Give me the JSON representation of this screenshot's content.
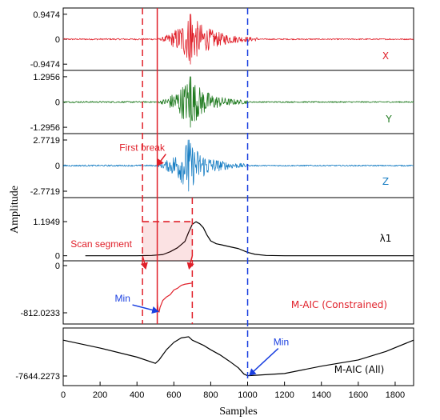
{
  "chart_data": {
    "type": "line",
    "title": "",
    "xlabel": "Samples",
    "ylabel": "Amplitude",
    "xlim": [
      0,
      1900
    ],
    "x_ticks": [
      "0",
      "200",
      "400",
      "600",
      "800",
      "1000",
      "1200",
      "1400",
      "1600",
      "1800"
    ],
    "panels": [
      {
        "id": "x",
        "series_label": "X",
        "color": "#e0202a",
        "ylim": [
          -0.9474,
          0.9474
        ],
        "y_ticks": [
          "0.9474",
          "0",
          "-0.9474"
        ],
        "signal": {
          "kind": "seismic",
          "start": 0,
          "end": 1900,
          "onset": 510,
          "peak_at": 690,
          "tail_end": 1060,
          "peak_amplitude": 0.9474
        }
      },
      {
        "id": "y",
        "series_label": "Y",
        "color": "#1f7a1f",
        "ylim": [
          -1.2956,
          1.2956
        ],
        "y_ticks": [
          "1.2956",
          "0",
          "-1.2956"
        ],
        "signal": {
          "kind": "seismic",
          "start": 0,
          "end": 1900,
          "onset": 505,
          "peak_at": 690,
          "tail_end": 1000,
          "peak_amplitude": 1.2956
        }
      },
      {
        "id": "z",
        "series_label": "Z",
        "color": "#1a7fc4",
        "ylim": [
          -2.7719,
          2.7719
        ],
        "y_ticks": [
          "2.7719",
          "0",
          "-2.7719"
        ],
        "signal": {
          "kind": "seismic",
          "start": 0,
          "end": 1900,
          "onset": 500,
          "peak_at": 680,
          "tail_end": 1000,
          "peak_amplitude": 2.7719
        }
      },
      {
        "id": "lambda",
        "series_label": "λ1",
        "color": "#000000",
        "ylim": [
          0,
          1.1949
        ],
        "y_ticks": [
          "1.1949",
          "0"
        ],
        "points": [
          [
            120,
            0
          ],
          [
            400,
            0
          ],
          [
            480,
            0.01
          ],
          [
            540,
            0.04
          ],
          [
            580,
            0.14
          ],
          [
            620,
            0.28
          ],
          [
            660,
            0.5
          ],
          [
            680,
            0.82
          ],
          [
            700,
            1.1
          ],
          [
            720,
            1.19
          ],
          [
            740,
            1.12
          ],
          [
            760,
            0.98
          ],
          [
            780,
            0.72
          ],
          [
            800,
            0.52
          ],
          [
            830,
            0.42
          ],
          [
            860,
            0.38
          ],
          [
            900,
            0.32
          ],
          [
            950,
            0.25
          ],
          [
            1000,
            0.12
          ],
          [
            1040,
            0.05
          ],
          [
            1100,
            0.01
          ],
          [
            1200,
            0
          ],
          [
            1900,
            0
          ]
        ]
      },
      {
        "id": "maic_constrained",
        "series_label": "M-AIC (Constrained)",
        "color": "#e0202a",
        "ylim": [
          -812.0233,
          0
        ],
        "y_ticks": [
          "0",
          "-812.0233"
        ],
        "points": [
          [
            510,
            -620
          ],
          [
            515,
            -780
          ],
          [
            520,
            -800
          ],
          [
            525,
            -720
          ],
          [
            540,
            -600
          ],
          [
            560,
            -540
          ],
          [
            580,
            -500
          ],
          [
            600,
            -420
          ],
          [
            620,
            -390
          ],
          [
            640,
            -340
          ],
          [
            660,
            -320
          ],
          [
            680,
            -310
          ],
          [
            700,
            -300
          ]
        ]
      },
      {
        "id": "maic_all",
        "series_label": "M-AIC (All)",
        "color": "#000000",
        "ylim": [
          -7644.2273,
          0
        ],
        "y_ticks": [
          "-7644.2273"
        ],
        "points": [
          [
            0,
            -1300
          ],
          [
            200,
            -2700
          ],
          [
            400,
            -4300
          ],
          [
            500,
            -5400
          ],
          [
            520,
            -4800
          ],
          [
            560,
            -3000
          ],
          [
            600,
            -1700
          ],
          [
            640,
            -900
          ],
          [
            680,
            -700
          ],
          [
            700,
            -1300
          ],
          [
            760,
            -2200
          ],
          [
            800,
            -3000
          ],
          [
            850,
            -3900
          ],
          [
            900,
            -5000
          ],
          [
            950,
            -6200
          ],
          [
            980,
            -7300
          ],
          [
            1000,
            -7600
          ],
          [
            1050,
            -7500
          ],
          [
            1200,
            -7200
          ],
          [
            1400,
            -5900
          ],
          [
            1600,
            -4800
          ],
          [
            1750,
            -3300
          ],
          [
            1900,
            -1300
          ]
        ]
      }
    ],
    "reference_lines": [
      {
        "x": 430,
        "color": "#e0202a",
        "style": "dashed",
        "from_panel": "x",
        "to_panel": "maic_constrained"
      },
      {
        "x": 510,
        "color": "#e0202a",
        "style": "solid",
        "from_panel": "x",
        "to_panel": "maic_constrained"
      },
      {
        "x": 700,
        "color": "#e0202a",
        "style": "dashed",
        "from_panel": "lambda",
        "to_panel": "maic_constrained"
      },
      {
        "x": 1000,
        "color": "#1a3fe0",
        "style": "dashed",
        "from_panel": "x",
        "to_panel": "maic_all"
      }
    ],
    "scan_segment": {
      "x_start": 430,
      "x_end": 700,
      "color": "#e0202a"
    },
    "annotations": [
      {
        "text": "First break",
        "color": "#e0202a",
        "panel": "z",
        "text_x": 305,
        "text_y": 1.6,
        "target_x": 510,
        "target_y": 0
      },
      {
        "text": "Scan segment",
        "color": "#e0202a",
        "panel": "lambda",
        "text_x": 40,
        "text_y": 0.3
      },
      {
        "text": "Min",
        "color": "#1a3fe0",
        "panel": "maic_constrained",
        "text_x": 280,
        "text_y": -620,
        "target_x": 515,
        "target_y": -790
      },
      {
        "text": "Min",
        "color": "#1a3fe0",
        "panel": "maic_all",
        "text_x": 1140,
        "text_y": -2200,
        "target_x": 1010,
        "target_y": -7500
      }
    ]
  }
}
